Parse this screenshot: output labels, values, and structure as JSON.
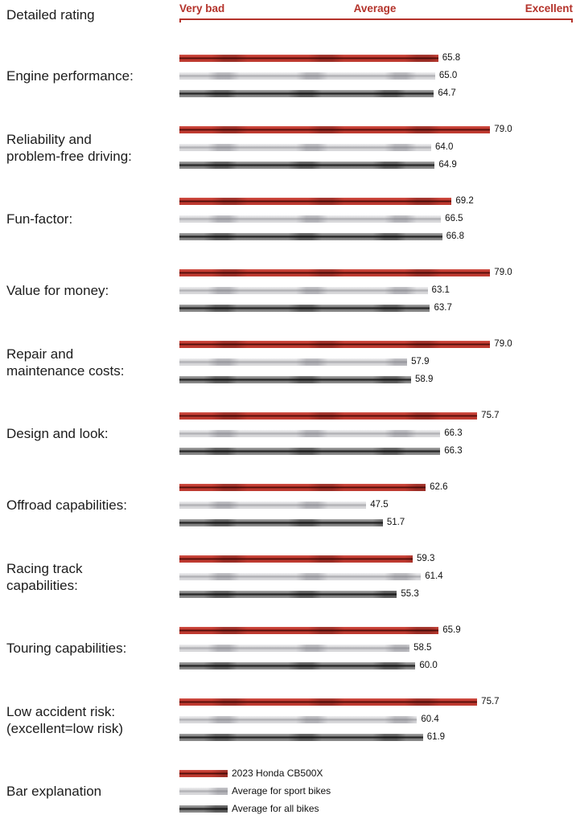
{
  "page": {
    "title": "Detailed rating",
    "legend_title": "Bar explanation"
  },
  "axis": {
    "left_label": "Very bad",
    "center_label": "Average",
    "right_label": "Excellent"
  },
  "colors": {
    "axis_red": "#b4332b",
    "honda_bar_red": "#c23d33",
    "sport_bar_gray": "#d6d6d8",
    "all_bar_dark": "#8c8c8c",
    "text": "#1c1c1c"
  },
  "legend": {
    "items": [
      {
        "key": "honda",
        "label": "2023 Honda CB500X"
      },
      {
        "key": "sport",
        "label": "Average for sport bikes"
      },
      {
        "key": "all",
        "label": "Average for all bikes"
      }
    ]
  },
  "rows": [
    {
      "label": "Engine performance:",
      "values": [
        65.8,
        65.0,
        64.7
      ],
      "value_labels": [
        "65.8",
        "65.0",
        "64.7"
      ]
    },
    {
      "label": "Reliability and\nproblem-free driving:",
      "values": [
        79.0,
        64.0,
        64.9
      ],
      "value_labels": [
        "79.0",
        "64.0",
        "64.9"
      ]
    },
    {
      "label": "Fun-factor:",
      "values": [
        69.2,
        66.5,
        66.8
      ],
      "value_labels": [
        "69.2",
        "66.5",
        "66.8"
      ]
    },
    {
      "label": "Value for money:",
      "values": [
        79.0,
        63.1,
        63.7
      ],
      "value_labels": [
        "79.0",
        "63.1",
        "63.7"
      ]
    },
    {
      "label": "Repair and\nmaintenance costs:",
      "values": [
        79.0,
        57.9,
        58.9
      ],
      "value_labels": [
        "79.0",
        "57.9",
        "58.9"
      ]
    },
    {
      "label": "Design and look:",
      "values": [
        75.7,
        66.3,
        66.3
      ],
      "value_labels": [
        "75.7",
        "66.3",
        "66.3"
      ]
    },
    {
      "label": "Offroad capabilities:",
      "values": [
        62.6,
        47.5,
        51.7
      ],
      "value_labels": [
        "62.6",
        "47.5",
        "51.7"
      ]
    },
    {
      "label": "Racing track\ncapabilities:",
      "values": [
        59.3,
        61.4,
        55.3
      ],
      "value_labels": [
        "59.3",
        "61.4",
        "55.3"
      ]
    },
    {
      "label": "Touring capabilities:",
      "values": [
        65.9,
        58.5,
        60.0
      ],
      "value_labels": [
        "65.9",
        "58.5",
        "60.0"
      ]
    },
    {
      "label": "Low accident risk:\n(excellent=low risk)",
      "values": [
        75.7,
        60.4,
        61.9
      ],
      "value_labels": [
        "75.7",
        "60.4",
        "61.9"
      ]
    }
  ],
  "chart_data": {
    "type": "bar",
    "orientation": "horizontal",
    "title": "Detailed rating",
    "axis_tick_labels": [
      "Very bad",
      "Average",
      "Excellent"
    ],
    "xlim": [
      0,
      100
    ],
    "grid": false,
    "legend_position": "bottom",
    "categories": [
      "Engine performance:",
      "Reliability and problem-free driving:",
      "Fun-factor:",
      "Value for money:",
      "Repair and maintenance costs:",
      "Design and look:",
      "Offroad capabilities:",
      "Racing track capabilities:",
      "Touring capabilities:",
      "Low accident risk: (excellent=low risk)"
    ],
    "series": [
      {
        "name": "2023 Honda CB500X",
        "color": "#c23d33",
        "values": [
          65.8,
          79.0,
          69.2,
          79.0,
          79.0,
          75.7,
          62.6,
          59.3,
          65.9,
          75.7
        ]
      },
      {
        "name": "Average for sport bikes",
        "color": "#d6d6d8",
        "values": [
          65.0,
          64.0,
          66.5,
          63.1,
          57.9,
          66.3,
          47.5,
          61.4,
          58.5,
          60.4
        ]
      },
      {
        "name": "Average for all bikes",
        "color": "#8c8c8c",
        "values": [
          64.7,
          64.9,
          66.8,
          63.7,
          58.9,
          66.3,
          51.7,
          55.3,
          60.0,
          61.9
        ]
      }
    ]
  }
}
